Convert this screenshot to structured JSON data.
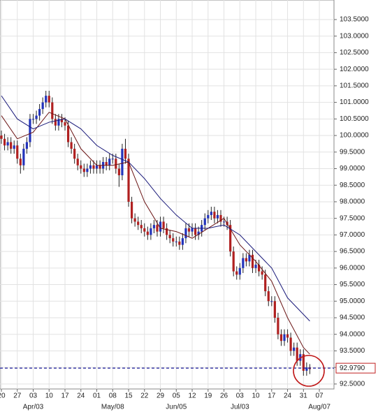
{
  "chart_data": {
    "type": "candlestick",
    "xlim": [
      -0.44,
      104.6
    ],
    "ylim": [
      92.35,
      104.09
    ],
    "grid": true,
    "up_color": "#2233bb",
    "down_color": "#b02020",
    "xticks": [
      {
        "value": 0,
        "label": "20"
      },
      {
        "value": 5,
        "label": "27"
      },
      {
        "value": 10,
        "label": "03"
      },
      {
        "value": 15,
        "label": "10"
      },
      {
        "value": 20,
        "label": "17"
      },
      {
        "value": 25,
        "label": "24"
      },
      {
        "value": 30,
        "label": "01"
      },
      {
        "value": 35,
        "label": "08"
      },
      {
        "value": 40,
        "label": "15"
      },
      {
        "value": 45,
        "label": "22"
      },
      {
        "value": 50,
        "label": "29"
      },
      {
        "value": 55,
        "label": "05"
      },
      {
        "value": 60,
        "label": "12"
      },
      {
        "value": 65,
        "label": "19"
      },
      {
        "value": 70,
        "label": "26"
      },
      {
        "value": 75,
        "label": "03"
      },
      {
        "value": 80,
        "label": "10"
      },
      {
        "value": 85,
        "label": "17"
      },
      {
        "value": 90,
        "label": "24"
      },
      {
        "value": 95,
        "label": "31"
      },
      {
        "value": 100,
        "label": "07"
      }
    ],
    "month_labels": [
      {
        "value": 10,
        "label": "Apr/03"
      },
      {
        "value": 35,
        "label": "May/08"
      },
      {
        "value": 55,
        "label": "Jun/05"
      },
      {
        "value": 75,
        "label": "Jul/03"
      },
      {
        "value": 100,
        "label": "Aug/07"
      }
    ],
    "yticks": [
      {
        "value": 92.5,
        "label": "92.5000"
      },
      {
        "value": 93,
        "label": "93.0000"
      },
      {
        "value": 93.5,
        "label": "93.5000"
      },
      {
        "value": 94,
        "label": "94.0000"
      },
      {
        "value": 94.5,
        "label": "94.5000"
      },
      {
        "value": 95,
        "label": "95.0000"
      },
      {
        "value": 95.5,
        "label": "95.5000"
      },
      {
        "value": 96,
        "label": "96.0000"
      },
      {
        "value": 96.5,
        "label": "96.5000"
      },
      {
        "value": 97,
        "label": "97.0000"
      },
      {
        "value": 97.5,
        "label": "97.5000"
      },
      {
        "value": 98,
        "label": "98.0000"
      },
      {
        "value": 98.5,
        "label": "98.5000"
      },
      {
        "value": 99,
        "label": "99.0000"
      },
      {
        "value": 99.5,
        "label": "99.5000"
      },
      {
        "value": 100,
        "label": "100.0000"
      },
      {
        "value": 100.5,
        "label": "100.5000"
      },
      {
        "value": 101,
        "label": "101.0000"
      },
      {
        "value": 101.5,
        "label": "101.5000"
      },
      {
        "value": 102,
        "label": "102.0000"
      },
      {
        "value": 102.5,
        "label": "102.5000"
      },
      {
        "value": 103,
        "label": "103.0000"
      },
      {
        "value": 103.5,
        "label": "103.5000"
      }
    ],
    "current_price": {
      "value": 92.979,
      "label": "92.9790",
      "color": "#1a1a99"
    },
    "x": [
      0,
      1,
      2,
      3,
      4,
      5,
      6,
      7,
      8,
      9,
      10,
      11,
      12,
      13,
      14,
      15,
      16,
      17,
      18,
      19,
      20,
      21,
      22,
      23,
      24,
      25,
      26,
      27,
      28,
      29,
      30,
      31,
      32,
      33,
      34,
      35,
      36,
      37,
      38,
      39,
      40,
      41,
      42,
      43,
      44,
      45,
      46,
      47,
      48,
      49,
      50,
      51,
      52,
      53,
      54,
      55,
      56,
      57,
      58,
      59,
      60,
      61,
      62,
      63,
      64,
      65,
      66,
      67,
      68,
      69,
      70,
      71,
      72,
      73,
      74,
      75,
      76,
      77,
      78,
      79,
      80,
      81,
      82,
      83,
      84,
      85,
      86,
      87,
      88,
      89,
      90,
      91,
      92,
      93,
      94,
      95,
      96,
      97
    ],
    "open": [
      100.0,
      99.9,
      99.7,
      99.8,
      99.6,
      99.7,
      99.3,
      99.1,
      99.6,
      99.8,
      100.5,
      100.5,
      100.6,
      100.8,
      101.0,
      101.2,
      101.0,
      100.5,
      100.3,
      100.5,
      100.4,
      100.3,
      99.8,
      99.6,
      99.3,
      99.1,
      99.0,
      98.9,
      99.0,
      99.1,
      99.0,
      99.1,
      99.0,
      99.2,
      99.1,
      99.3,
      99.3,
      99.0,
      98.8,
      99.6,
      99.3,
      98.0,
      97.5,
      97.4,
      97.3,
      97.2,
      97.1,
      97.0,
      97.2,
      97.3,
      97.1,
      97.4,
      97.2,
      97.0,
      96.9,
      96.8,
      96.8,
      96.7,
      96.9,
      97.2,
      97.1,
      97.2,
      97.0,
      97.1,
      97.3,
      97.5,
      97.6,
      97.7,
      97.5,
      97.6,
      97.4,
      97.4,
      97.3,
      96.5,
      95.9,
      95.8,
      96.0,
      96.3,
      96.2,
      96.4,
      96.0,
      96.1,
      95.9,
      95.8,
      95.3,
      95.0,
      95.0,
      94.5,
      94.0,
      93.8,
      94.0,
      93.9,
      93.5,
      93.6,
      93.2,
      93.4,
      92.9,
      93.0
    ],
    "high": [
      100.15,
      100.05,
      99.95,
      99.95,
      99.85,
      99.85,
      99.45,
      99.75,
      99.95,
      100.65,
      100.65,
      100.75,
      100.95,
      101.15,
      101.35,
      101.35,
      101.15,
      100.65,
      100.65,
      100.65,
      100.55,
      100.45,
      99.95,
      99.75,
      99.45,
      99.25,
      99.15,
      99.15,
      99.25,
      99.25,
      99.25,
      99.25,
      99.35,
      99.35,
      99.45,
      99.45,
      99.45,
      99.15,
      99.75,
      99.9,
      99.45,
      98.15,
      97.65,
      97.55,
      97.45,
      97.35,
      97.25,
      97.35,
      97.45,
      97.45,
      97.55,
      97.55,
      97.35,
      97.15,
      97.05,
      96.95,
      96.95,
      97.05,
      97.35,
      97.35,
      97.35,
      97.35,
      97.25,
      97.45,
      97.65,
      97.75,
      97.85,
      97.85,
      97.75,
      97.75,
      97.55,
      97.55,
      97.45,
      96.65,
      96.05,
      96.15,
      96.45,
      96.45,
      96.55,
      96.55,
      96.25,
      96.25,
      96.05,
      95.95,
      95.45,
      95.15,
      95.15,
      94.65,
      94.15,
      94.15,
      94.15,
      94.05,
      93.75,
      93.75,
      93.55,
      93.55,
      93.15,
      93.1
    ],
    "low": [
      99.75,
      99.55,
      99.55,
      99.45,
      99.45,
      99.15,
      98.85,
      98.95,
      99.45,
      99.65,
      100.35,
      100.35,
      100.45,
      100.65,
      100.85,
      100.85,
      100.35,
      100.15,
      100.15,
      100.25,
      100.15,
      99.65,
      99.45,
      99.15,
      98.95,
      98.85,
      98.75,
      98.75,
      98.85,
      98.85,
      98.85,
      98.85,
      98.85,
      98.95,
      98.95,
      99.15,
      98.85,
      98.45,
      98.65,
      99.15,
      97.85,
      97.35,
      97.25,
      97.15,
      97.05,
      96.95,
      96.85,
      96.85,
      97.05,
      96.95,
      96.95,
      97.05,
      96.85,
      96.75,
      96.65,
      96.65,
      96.55,
      96.55,
      96.75,
      96.95,
      96.95,
      96.85,
      96.85,
      96.95,
      97.15,
      97.35,
      97.45,
      97.35,
      97.35,
      97.25,
      97.25,
      97.15,
      96.35,
      95.75,
      95.65,
      95.65,
      95.85,
      96.05,
      96.05,
      95.85,
      95.85,
      95.75,
      95.65,
      95.15,
      94.85,
      94.85,
      94.35,
      93.85,
      93.65,
      93.65,
      93.75,
      93.35,
      93.35,
      93.05,
      93.05,
      92.75,
      92.75,
      92.8
    ],
    "close": [
      99.9,
      99.7,
      99.8,
      99.6,
      99.7,
      99.3,
      99.1,
      99.6,
      99.8,
      100.5,
      100.5,
      100.6,
      100.8,
      101.0,
      101.2,
      101.0,
      100.5,
      100.3,
      100.5,
      100.4,
      100.3,
      99.8,
      99.6,
      99.3,
      99.1,
      99.0,
      98.9,
      99.0,
      99.1,
      99.0,
      99.1,
      99.0,
      99.2,
      99.1,
      99.3,
      99.3,
      99.0,
      98.8,
      99.6,
      99.3,
      98.0,
      97.5,
      97.4,
      97.3,
      97.2,
      97.1,
      97.0,
      97.2,
      97.3,
      97.1,
      97.4,
      97.2,
      97.0,
      96.9,
      96.8,
      96.8,
      96.7,
      96.9,
      97.2,
      97.1,
      97.2,
      97.0,
      97.1,
      97.3,
      97.5,
      97.6,
      97.7,
      97.5,
      97.6,
      97.4,
      97.4,
      97.3,
      96.5,
      95.9,
      95.8,
      96.0,
      96.3,
      96.2,
      96.4,
      96.0,
      96.1,
      95.9,
      95.8,
      95.3,
      95.0,
      95.0,
      94.5,
      94.0,
      93.8,
      94.0,
      93.9,
      93.5,
      93.6,
      93.2,
      93.4,
      92.9,
      93.0,
      92.95
    ],
    "moving_averages": [
      {
        "color": "#6b1515",
        "x": [
          0,
          5,
          10,
          15,
          20,
          25,
          30,
          35,
          40,
          45,
          50,
          55,
          60,
          65,
          70,
          75,
          80,
          85,
          90,
          95,
          97
        ],
        "values": [
          100.6,
          99.9,
          100.1,
          100.7,
          100.5,
          99.6,
          99.1,
          99.1,
          99.2,
          98.0,
          97.2,
          97.1,
          96.9,
          97.2,
          97.5,
          96.7,
          96.2,
          95.6,
          94.5,
          93.6,
          93.4
        ]
      },
      {
        "color": "#1a1a7a",
        "x": [
          0,
          5,
          10,
          15,
          20,
          25,
          30,
          35,
          40,
          45,
          50,
          55,
          60,
          65,
          70,
          75,
          80,
          85,
          90,
          95,
          97
        ],
        "values": [
          101.2,
          100.5,
          100.2,
          100.4,
          100.5,
          100.2,
          99.7,
          99.4,
          99.2,
          98.7,
          98.1,
          97.6,
          97.2,
          97.2,
          97.3,
          97.0,
          96.5,
          96.0,
          95.1,
          94.6,
          94.4
        ]
      }
    ]
  }
}
